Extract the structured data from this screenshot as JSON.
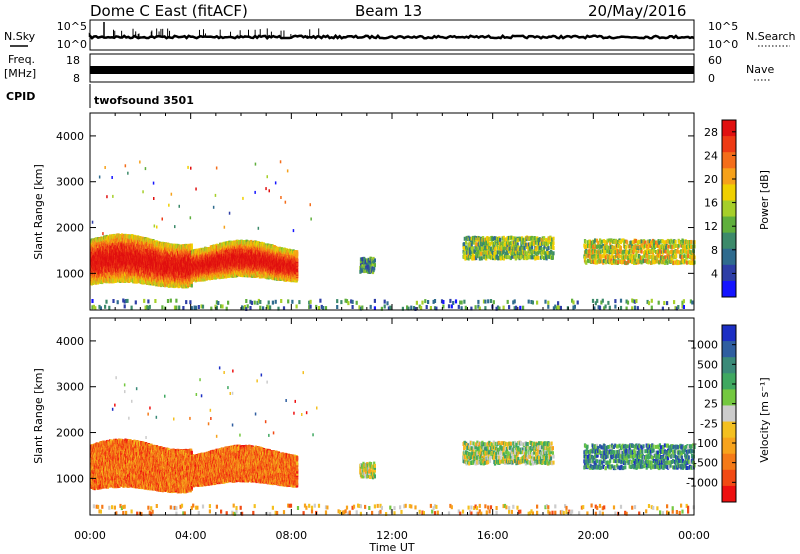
{
  "header": {
    "station": "Dome C East (fitACF)",
    "beam": "Beam 13",
    "date": "20/May/2016"
  },
  "strip_labels": {
    "nsky": "N.Sky",
    "nsearch": "N.Search",
    "freq_top": "Freq.",
    "freq_unit": "[MHz]",
    "nave": "Nave",
    "cpid": "CPID",
    "cpid_value": "twofsound 3501",
    "nsky_ticks": [
      "10^5",
      "10^0"
    ],
    "nsearch_ticks": [
      "10^5",
      "10^0"
    ],
    "freq_ticks": [
      "18",
      "8"
    ],
    "nave_ticks": [
      "60",
      "0"
    ]
  },
  "colors": {
    "power": [
      "#1414ff",
      "#2e3ea6",
      "#2f6b8e",
      "#3c8a6a",
      "#5faf3c",
      "#a6cf2a",
      "#f0d000",
      "#f6a11a",
      "#f46d1a",
      "#ee3a14",
      "#e01010"
    ],
    "velocity": [
      "#ee1010",
      "#f24a14",
      "#f57a18",
      "#f7a31c",
      "#f4c020",
      "#cccccc",
      "#74c840",
      "#3fa860",
      "#3a8a78",
      "#2f5ea0",
      "#1c2fc4"
    ]
  },
  "chart_data": [
    {
      "type": "heatmap",
      "panel": "power",
      "x": [
        "00:00",
        "04:00",
        "08:00",
        "12:00",
        "16:00",
        "20:00",
        "00:00"
      ],
      "xlabel": "Time UT",
      "ylabel": "Slant Range [km]",
      "yticks": [
        1000,
        2000,
        3000,
        4000
      ],
      "ylim": [
        200,
        4500
      ],
      "colorbar_label": "Power [dB]",
      "colorbar_ticks": [
        4,
        8,
        12,
        16,
        20,
        24,
        28
      ],
      "colorbar_range": [
        0,
        30
      ],
      "regions": [
        {
          "t0": 0.0,
          "t1": 8.2,
          "r0": 700,
          "r1": 2000,
          "level": 0.85
        },
        {
          "t0": 10.7,
          "t1": 11.3,
          "r0": 1000,
          "r1": 1300,
          "level": 0.3
        },
        {
          "t0": 14.8,
          "t1": 18.4,
          "r0": 1300,
          "r1": 1800,
          "level": 0.45
        },
        {
          "t0": 19.6,
          "t1": 24.0,
          "r0": 1200,
          "r1": 1750,
          "level": 0.55
        },
        {
          "t0": 0.0,
          "t1": 24.0,
          "r0": 200,
          "r1": 450,
          "level": 0.3
        }
      ]
    },
    {
      "type": "heatmap",
      "panel": "velocity",
      "x": [
        "00:00",
        "04:00",
        "08:00",
        "12:00",
        "16:00",
        "20:00",
        "00:00"
      ],
      "xlabel": "Time UT",
      "ylabel": "Slant Range [km]",
      "yticks": [
        1000,
        2000,
        3000,
        4000
      ],
      "ylim": [
        200,
        4500
      ],
      "colorbar_label": "Velocity [m s⁻¹]",
      "colorbar_ticks": [
        1000,
        500,
        100,
        25,
        -25,
        -100,
        -500,
        -1000
      ],
      "colorbar_range": [
        -1250,
        1250
      ],
      "regions": [
        {
          "t0": 0.0,
          "t1": 8.2,
          "r0": 700,
          "r1": 2000,
          "level": 0.22
        },
        {
          "t0": 10.7,
          "t1": 11.3,
          "r0": 1000,
          "r1": 1300,
          "level": 0.5
        },
        {
          "t0": 14.8,
          "t1": 18.4,
          "r0": 1300,
          "r1": 1800,
          "level": 0.55
        },
        {
          "t0": 19.6,
          "t1": 24.0,
          "r0": 1200,
          "r1": 1750,
          "level": 0.75
        },
        {
          "t0": 0.0,
          "t1": 24.0,
          "r0": 200,
          "r1": 450,
          "level": 0.35
        }
      ]
    }
  ]
}
